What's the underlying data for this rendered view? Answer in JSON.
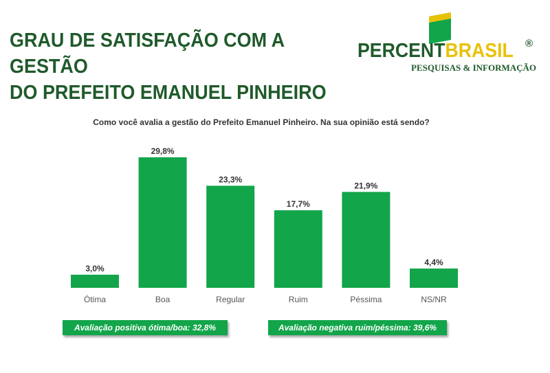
{
  "header": {
    "title_line1": "GRAU DE SATISFAÇÃO COM A GESTÃO",
    "title_line2": "DO PREFEITO EMANUEL PINHEIRO"
  },
  "logo": {
    "name_part1": "PERCENT",
    "name_part2": "BRASIL",
    "registered": "®",
    "tagline": "PESQUISAS & INFORMAÇÃO"
  },
  "colors": {
    "bar": "#12a54a",
    "title": "#1f5a2b",
    "brand_yellow": "#e8c20a",
    "brand_green": "#1f5a2b"
  },
  "chart_data": {
    "type": "bar",
    "title": "Como você avalia a gestão do Prefeito Emanuel Pinheiro. Na sua opinião está sendo?",
    "xlabel": "",
    "ylabel": "",
    "categories": [
      "Ótima",
      "Boa",
      "Regular",
      "Ruim",
      "Péssima",
      "NS/NR"
    ],
    "values": [
      3.0,
      29.8,
      23.3,
      17.7,
      21.9,
      4.4
    ],
    "data_labels": [
      "3,0%",
      "29,8%",
      "23,3%",
      "17,7%",
      "21,9%",
      "4,4%"
    ],
    "unit": "%",
    "ylim": [
      0,
      30
    ],
    "grid": false,
    "legend": "none"
  },
  "summary": {
    "positive": "Avaliação positiva ótima/boa: 32,8%",
    "negative": "Avaliação negativa ruim/péssima: 39,6%"
  }
}
